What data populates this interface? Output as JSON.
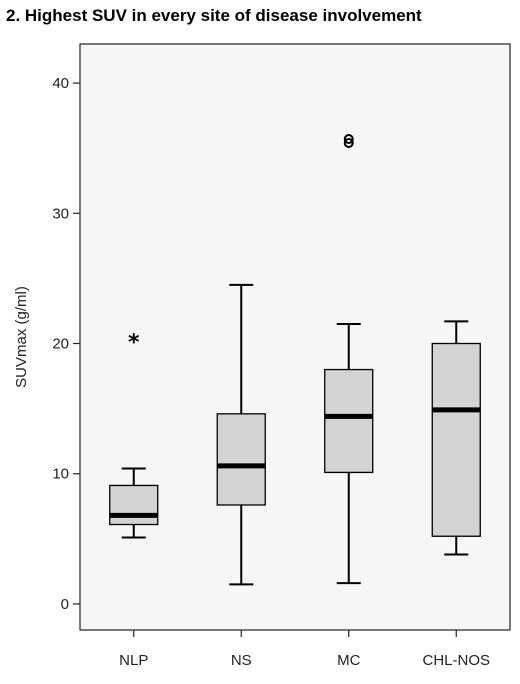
{
  "chart_data": {
    "type": "boxplot",
    "title": "2. Highest SUV in every site of disease involvement",
    "xlabel": "",
    "ylabel": "SUVmax (g/ml)",
    "ylim": [
      -2,
      43
    ],
    "yticks": [
      0,
      10,
      20,
      30,
      40
    ],
    "grid": false,
    "categories": [
      "NLP",
      "NS",
      "MC",
      "CHL-NOS"
    ],
    "boxes": [
      {
        "category": "NLP",
        "whisker_low": 5.1,
        "q1": 6.1,
        "median": 6.8,
        "q3": 9.1,
        "whisker_high": 10.4,
        "outliers": [],
        "extremes": [
          20.3
        ]
      },
      {
        "category": "NS",
        "whisker_low": 1.5,
        "q1": 7.6,
        "median": 10.6,
        "q3": 14.6,
        "whisker_high": 24.5,
        "outliers": [],
        "extremes": []
      },
      {
        "category": "MC",
        "whisker_low": 1.6,
        "q1": 10.1,
        "median": 14.4,
        "q3": 18.0,
        "whisker_high": 21.5,
        "outliers": [
          35.4,
          35.7
        ],
        "extremes": []
      },
      {
        "category": "CHL-NOS",
        "whisker_low": 3.8,
        "q1": 5.2,
        "median": 14.9,
        "q3": 20.0,
        "whisker_high": 21.7,
        "outliers": [],
        "extremes": []
      }
    ],
    "colors": {
      "box_fill": "#d3d3d3",
      "plot_background": "#f6f6f6",
      "stroke": "#000000"
    }
  }
}
